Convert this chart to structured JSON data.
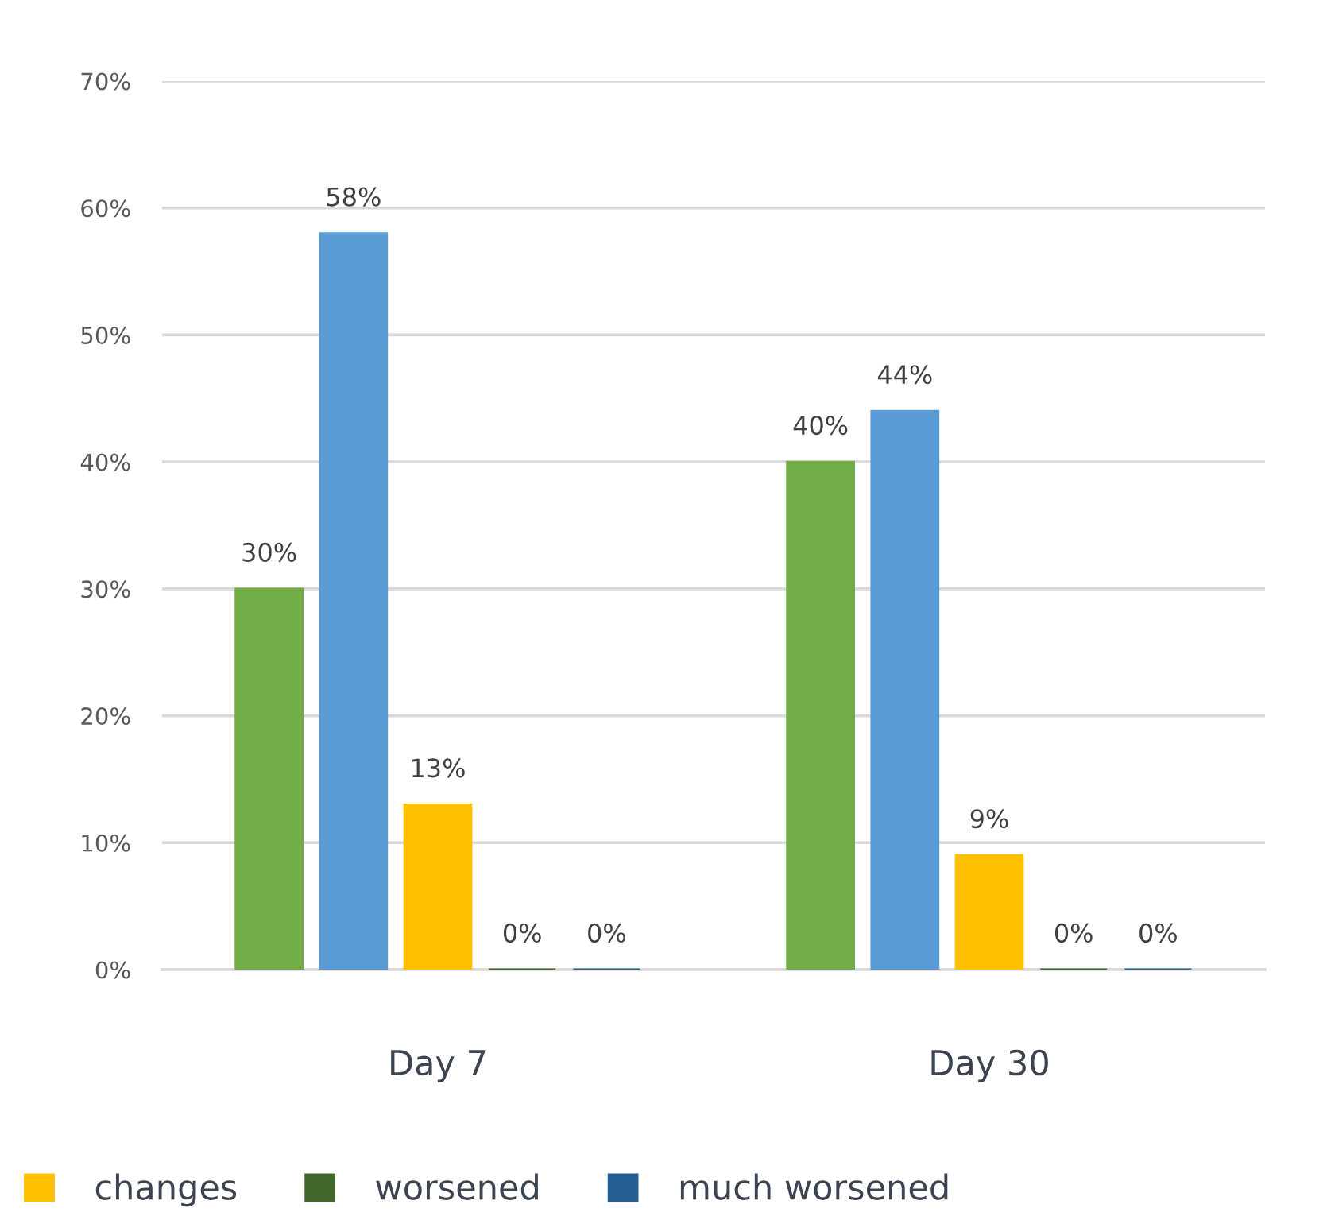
{
  "chart_data": {
    "type": "bar",
    "categories": [
      "Day 7",
      "Day 30"
    ],
    "series": [
      {
        "color": "#70ad47",
        "values": [
          30,
          40
        ],
        "value_labels": [
          "30%",
          "40%"
        ]
      },
      {
        "color": "#5b9bd5",
        "values": [
          58,
          44
        ],
        "value_labels": [
          "58%",
          "44%"
        ]
      },
      {
        "name": "changes",
        "color": "#ffc000",
        "values": [
          13,
          9
        ],
        "value_labels": [
          "13%",
          "9%"
        ]
      },
      {
        "name": "worsened",
        "color": "#43682b",
        "values": [
          0,
          0
        ],
        "value_labels": [
          "0%",
          "0%"
        ]
      },
      {
        "name": "much worsened",
        "color": "#255e91",
        "values": [
          0,
          0
        ],
        "value_labels": [
          "0%",
          "0%"
        ]
      }
    ],
    "ylim": [
      0,
      70
    ],
    "yticks": [
      {
        "value": 0,
        "label": "0%"
      },
      {
        "value": 10,
        "label": "10%"
      },
      {
        "value": 20,
        "label": "20%"
      },
      {
        "value": 30,
        "label": "30%"
      },
      {
        "value": 40,
        "label": "40%"
      },
      {
        "value": 50,
        "label": "50%"
      },
      {
        "value": 60,
        "label": "60%"
      },
      {
        "value": 70,
        "label": "70%"
      }
    ],
    "grid": "y",
    "legend": "bottom"
  }
}
